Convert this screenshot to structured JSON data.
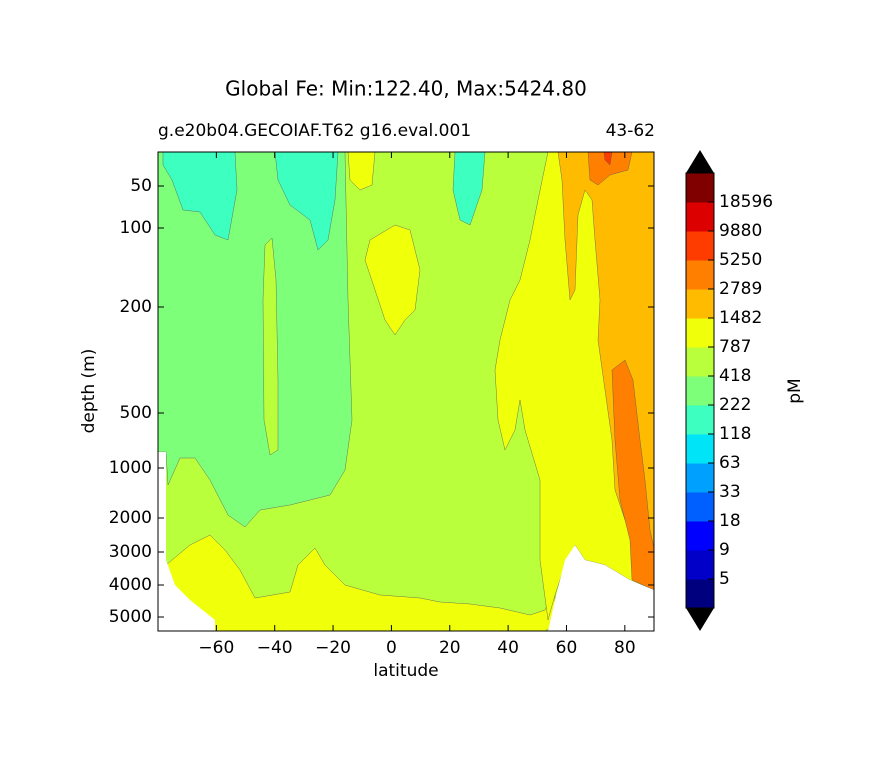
{
  "chart_data": {
    "type": "contour",
    "title": "Global Fe: Min:122.40, Max:5424.80",
    "subtitle_left": "g.e20b04.GECOIAF.T62 g16.eval.001",
    "subtitle_right": "43-62",
    "xlabel": "latitude",
    "ylabel": "depth (m)",
    "colorbar_label": "pM",
    "xlim": [
      -80,
      90
    ],
    "xticks": [
      {
        "value": -60,
        "label": "−60"
      },
      {
        "value": -40,
        "label": "−40"
      },
      {
        "value": -20,
        "label": "−20"
      },
      0,
      20,
      40,
      60,
      80
    ],
    "yticks": [
      50,
      100,
      200,
      500,
      1000,
      2000,
      3000,
      4000,
      5000
    ],
    "y_inverted": true,
    "levels": [
      5,
      9,
      18,
      33,
      63,
      118,
      222,
      418,
      787,
      1482,
      2789,
      5250,
      9880,
      18596
    ],
    "colors": [
      "#00007f",
      "#0000c8",
      "#0000ff",
      "#0060ff",
      "#00a0ff",
      "#00e4f8",
      "#3cffc0",
      "#7dff7a",
      "#b9ff3c",
      "#f0ff0a",
      "#ffbb00",
      "#ff7f00",
      "#ff3c00",
      "#dd0000",
      "#800000"
    ],
    "extend": "both"
  }
}
